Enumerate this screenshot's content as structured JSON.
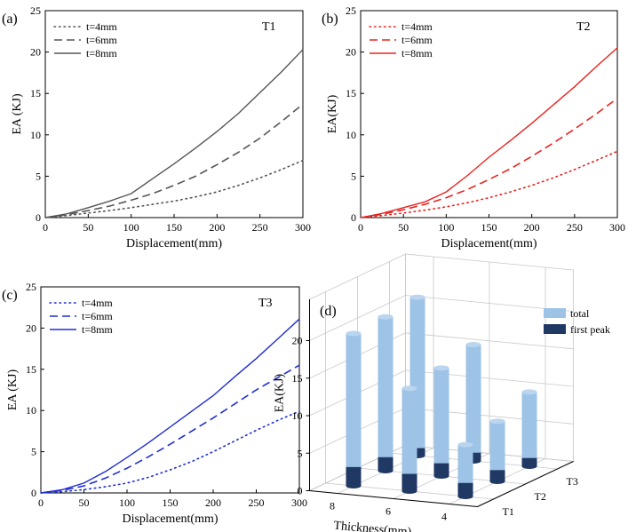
{
  "chart_data": [
    {
      "panel": "(a)",
      "type": "line",
      "title": "T1",
      "xlabel": "Displacement(mm)",
      "ylabel": "EA (KJ)",
      "xlim": [
        0,
        300
      ],
      "ylim": [
        0,
        25
      ],
      "xticks": [
        0,
        50,
        100,
        150,
        200,
        250,
        300
      ],
      "yticks": [
        0,
        5,
        10,
        15,
        20,
        25
      ],
      "legend": "top-left",
      "color": "#555555",
      "series": [
        {
          "name": "t=4mm",
          "style": "dotted",
          "x": [
            0,
            25,
            50,
            75,
            100,
            125,
            150,
            175,
            200,
            225,
            250,
            275,
            300
          ],
          "y": [
            0,
            0.25,
            0.55,
            0.85,
            1.2,
            1.6,
            2.0,
            2.5,
            3.1,
            3.9,
            4.8,
            5.8,
            6.9
          ]
        },
        {
          "name": "t=6mm",
          "style": "dashed",
          "x": [
            0,
            25,
            50,
            75,
            100,
            125,
            150,
            175,
            200,
            225,
            250,
            275,
            300
          ],
          "y": [
            0,
            0.35,
            0.85,
            1.4,
            2.1,
            2.9,
            3.9,
            5.0,
            6.4,
            7.9,
            9.6,
            11.6,
            13.7
          ]
        },
        {
          "name": "t=8mm",
          "style": "solid",
          "x": [
            0,
            25,
            50,
            75,
            100,
            125,
            150,
            175,
            200,
            225,
            250,
            275,
            300
          ],
          "y": [
            0,
            0.45,
            1.2,
            2.0,
            2.9,
            4.7,
            6.5,
            8.4,
            10.4,
            12.6,
            15.1,
            17.6,
            20.3
          ]
        }
      ]
    },
    {
      "panel": "(b)",
      "type": "line",
      "title": "T2",
      "xlabel": "Displacement(mm)",
      "ylabel": "EA(KJ)",
      "xlim": [
        0,
        300
      ],
      "ylim": [
        0,
        25
      ],
      "xticks": [
        0,
        50,
        100,
        150,
        200,
        250,
        300
      ],
      "yticks": [
        0,
        5,
        10,
        15,
        20,
        25
      ],
      "legend": "top-left",
      "color": "#e8231f",
      "series": [
        {
          "name": "t=4mm",
          "style": "dotted",
          "x": [
            0,
            25,
            50,
            75,
            100,
            125,
            150,
            175,
            200,
            225,
            250,
            275,
            300
          ],
          "y": [
            0,
            0.25,
            0.55,
            0.9,
            1.3,
            1.8,
            2.4,
            3.1,
            3.9,
            4.8,
            5.8,
            6.9,
            8.0
          ]
        },
        {
          "name": "t=6mm",
          "style": "dashed",
          "x": [
            0,
            25,
            50,
            75,
            100,
            125,
            150,
            175,
            200,
            225,
            250,
            275,
            300
          ],
          "y": [
            0,
            0.4,
            0.95,
            1.6,
            2.4,
            3.4,
            4.6,
            5.9,
            7.4,
            9.0,
            10.7,
            12.5,
            14.4
          ]
        },
        {
          "name": "t=8mm",
          "style": "solid",
          "x": [
            0,
            25,
            50,
            75,
            100,
            125,
            150,
            175,
            200,
            225,
            250,
            275,
            300
          ],
          "y": [
            0,
            0.5,
            1.2,
            1.9,
            3.1,
            5.1,
            7.3,
            9.3,
            11.4,
            13.6,
            15.8,
            18.2,
            20.5
          ]
        }
      ]
    },
    {
      "panel": "(c)",
      "type": "line",
      "title": "T3",
      "xlabel": "Displacement(mm)",
      "ylabel": "EA (KJ)",
      "xlim": [
        0,
        300
      ],
      "ylim": [
        0,
        25
      ],
      "xticks": [
        0,
        50,
        100,
        150,
        200,
        250,
        300
      ],
      "yticks": [
        0,
        5,
        10,
        15,
        20,
        25
      ],
      "legend": "top-left",
      "color": "#1f2ed1",
      "series": [
        {
          "name": "t=4mm",
          "style": "dotted",
          "x": [
            0,
            25,
            50,
            75,
            100,
            125,
            150,
            175,
            200,
            225,
            250,
            275,
            300
          ],
          "y": [
            0,
            0.15,
            0.4,
            0.75,
            1.2,
            1.9,
            2.8,
            3.8,
            5.0,
            6.3,
            7.6,
            8.8,
            9.9
          ]
        },
        {
          "name": "t=6mm",
          "style": "dashed",
          "x": [
            0,
            25,
            50,
            75,
            100,
            125,
            150,
            175,
            200,
            225,
            250,
            275,
            300
          ],
          "y": [
            0,
            0.3,
            0.85,
            1.8,
            3.0,
            4.4,
            5.9,
            7.5,
            9.1,
            10.8,
            12.5,
            14.0,
            15.5
          ]
        },
        {
          "name": "t=8mm",
          "style": "solid",
          "x": [
            0,
            25,
            50,
            75,
            100,
            125,
            150,
            175,
            200,
            225,
            250,
            275,
            300
          ],
          "y": [
            0,
            0.4,
            1.2,
            2.6,
            4.3,
            6.1,
            8.0,
            9.9,
            11.8,
            14.1,
            16.3,
            18.7,
            21.1
          ]
        }
      ]
    },
    {
      "panel": "(d)",
      "type": "bar",
      "bar3d": true,
      "xlabel": "Thickness(mm)",
      "ylabel": "EA(KJ)",
      "zticks": [
        0,
        5,
        10,
        15,
        20
      ],
      "thickness_ticks": [
        "8",
        "6",
        "4"
      ],
      "tube_ticks": [
        "T1",
        "T2",
        "T3"
      ],
      "legend": "top-right",
      "colors": {
        "total": "#9dc3e6",
        "first peak": "#203864"
      },
      "series": [
        {
          "name": "total",
          "values": [
            {
              "thickness": "8",
              "tube": "T1",
              "value": 20.3
            },
            {
              "thickness": "8",
              "tube": "T2",
              "value": 20.5
            },
            {
              "thickness": "8",
              "tube": "T3",
              "value": 21.1
            },
            {
              "thickness": "6",
              "tube": "T1",
              "value": 13.7
            },
            {
              "thickness": "6",
              "tube": "T2",
              "value": 14.4
            },
            {
              "thickness": "6",
              "tube": "T3",
              "value": 15.5
            },
            {
              "thickness": "4",
              "tube": "T1",
              "value": 6.9
            },
            {
              "thickness": "4",
              "tube": "T2",
              "value": 8.0
            },
            {
              "thickness": "4",
              "tube": "T3",
              "value": 9.9
            }
          ]
        },
        {
          "name": "first peak",
          "values": [
            {
              "thickness": "8",
              "tube": "T1",
              "value": 2.5
            },
            {
              "thickness": "8",
              "tube": "T2",
              "value": 1.8
            },
            {
              "thickness": "8",
              "tube": "T3",
              "value": 1.0
            },
            {
              "thickness": "6",
              "tube": "T1",
              "value": 2.3
            },
            {
              "thickness": "6",
              "tube": "T2",
              "value": 1.7
            },
            {
              "thickness": "6",
              "tube": "T3",
              "value": 1.1
            },
            {
              "thickness": "4",
              "tube": "T1",
              "value": 1.8
            },
            {
              "thickness": "4",
              "tube": "T2",
              "value": 1.5
            },
            {
              "thickness": "4",
              "tube": "T3",
              "value": 1.1
            }
          ]
        }
      ]
    }
  ]
}
